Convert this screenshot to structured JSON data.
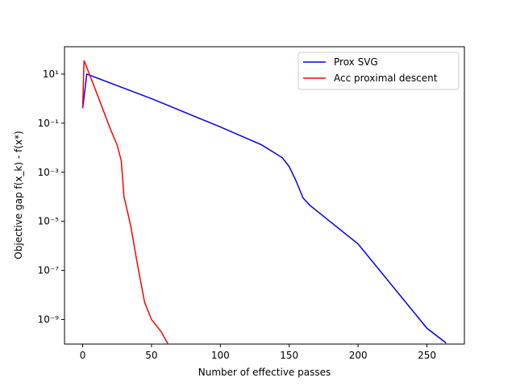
{
  "chart_data": {
    "type": "line",
    "xlabel": "Number of effective passes",
    "ylabel": "Objective gap f(x_k) - f(x*)",
    "yscale": "log",
    "xlim": [
      -13.2,
      277.2
    ],
    "ylim": [
      1e-10,
      130
    ],
    "xticks": [
      0,
      50,
      100,
      150,
      200,
      250
    ],
    "yticks": [
      {
        "value": 10,
        "label": "10¹"
      },
      {
        "value": 0.1,
        "label": "10⁻¹"
      },
      {
        "value": 0.001,
        "label": "10⁻³"
      },
      {
        "value": 1e-05,
        "label": "10⁻⁵"
      },
      {
        "value": 1e-07,
        "label": "10⁻⁷"
      },
      {
        "value": 1e-09,
        "label": "10⁻⁹"
      }
    ],
    "legend": "upper right",
    "series": [
      {
        "name": "Prox SVG",
        "color": "#0000ff",
        "x": [
          0,
          3,
          50,
          100,
          130,
          145,
          150,
          155,
          160,
          165,
          200,
          250,
          264
        ],
        "values": [
          0.4,
          10,
          1.0,
          0.07,
          0.013,
          0.0039,
          0.0017,
          0.00044,
          9e-05,
          4.5e-05,
          1.2e-06,
          4.4e-10,
          1.1e-10
        ]
      },
      {
        "name": "Acc proximal descent",
        "color": "#ff0000",
        "x": [
          0,
          1,
          10,
          20,
          25,
          28,
          30,
          31,
          35,
          40,
          45,
          50,
          57,
          62
        ],
        "values": [
          0.4,
          36,
          1.8,
          0.06,
          0.013,
          0.003,
          0.0001,
          6e-05,
          6e-06,
          1.5e-07,
          5e-09,
          1e-09,
          3.2e-10,
          1e-10
        ]
      }
    ]
  }
}
